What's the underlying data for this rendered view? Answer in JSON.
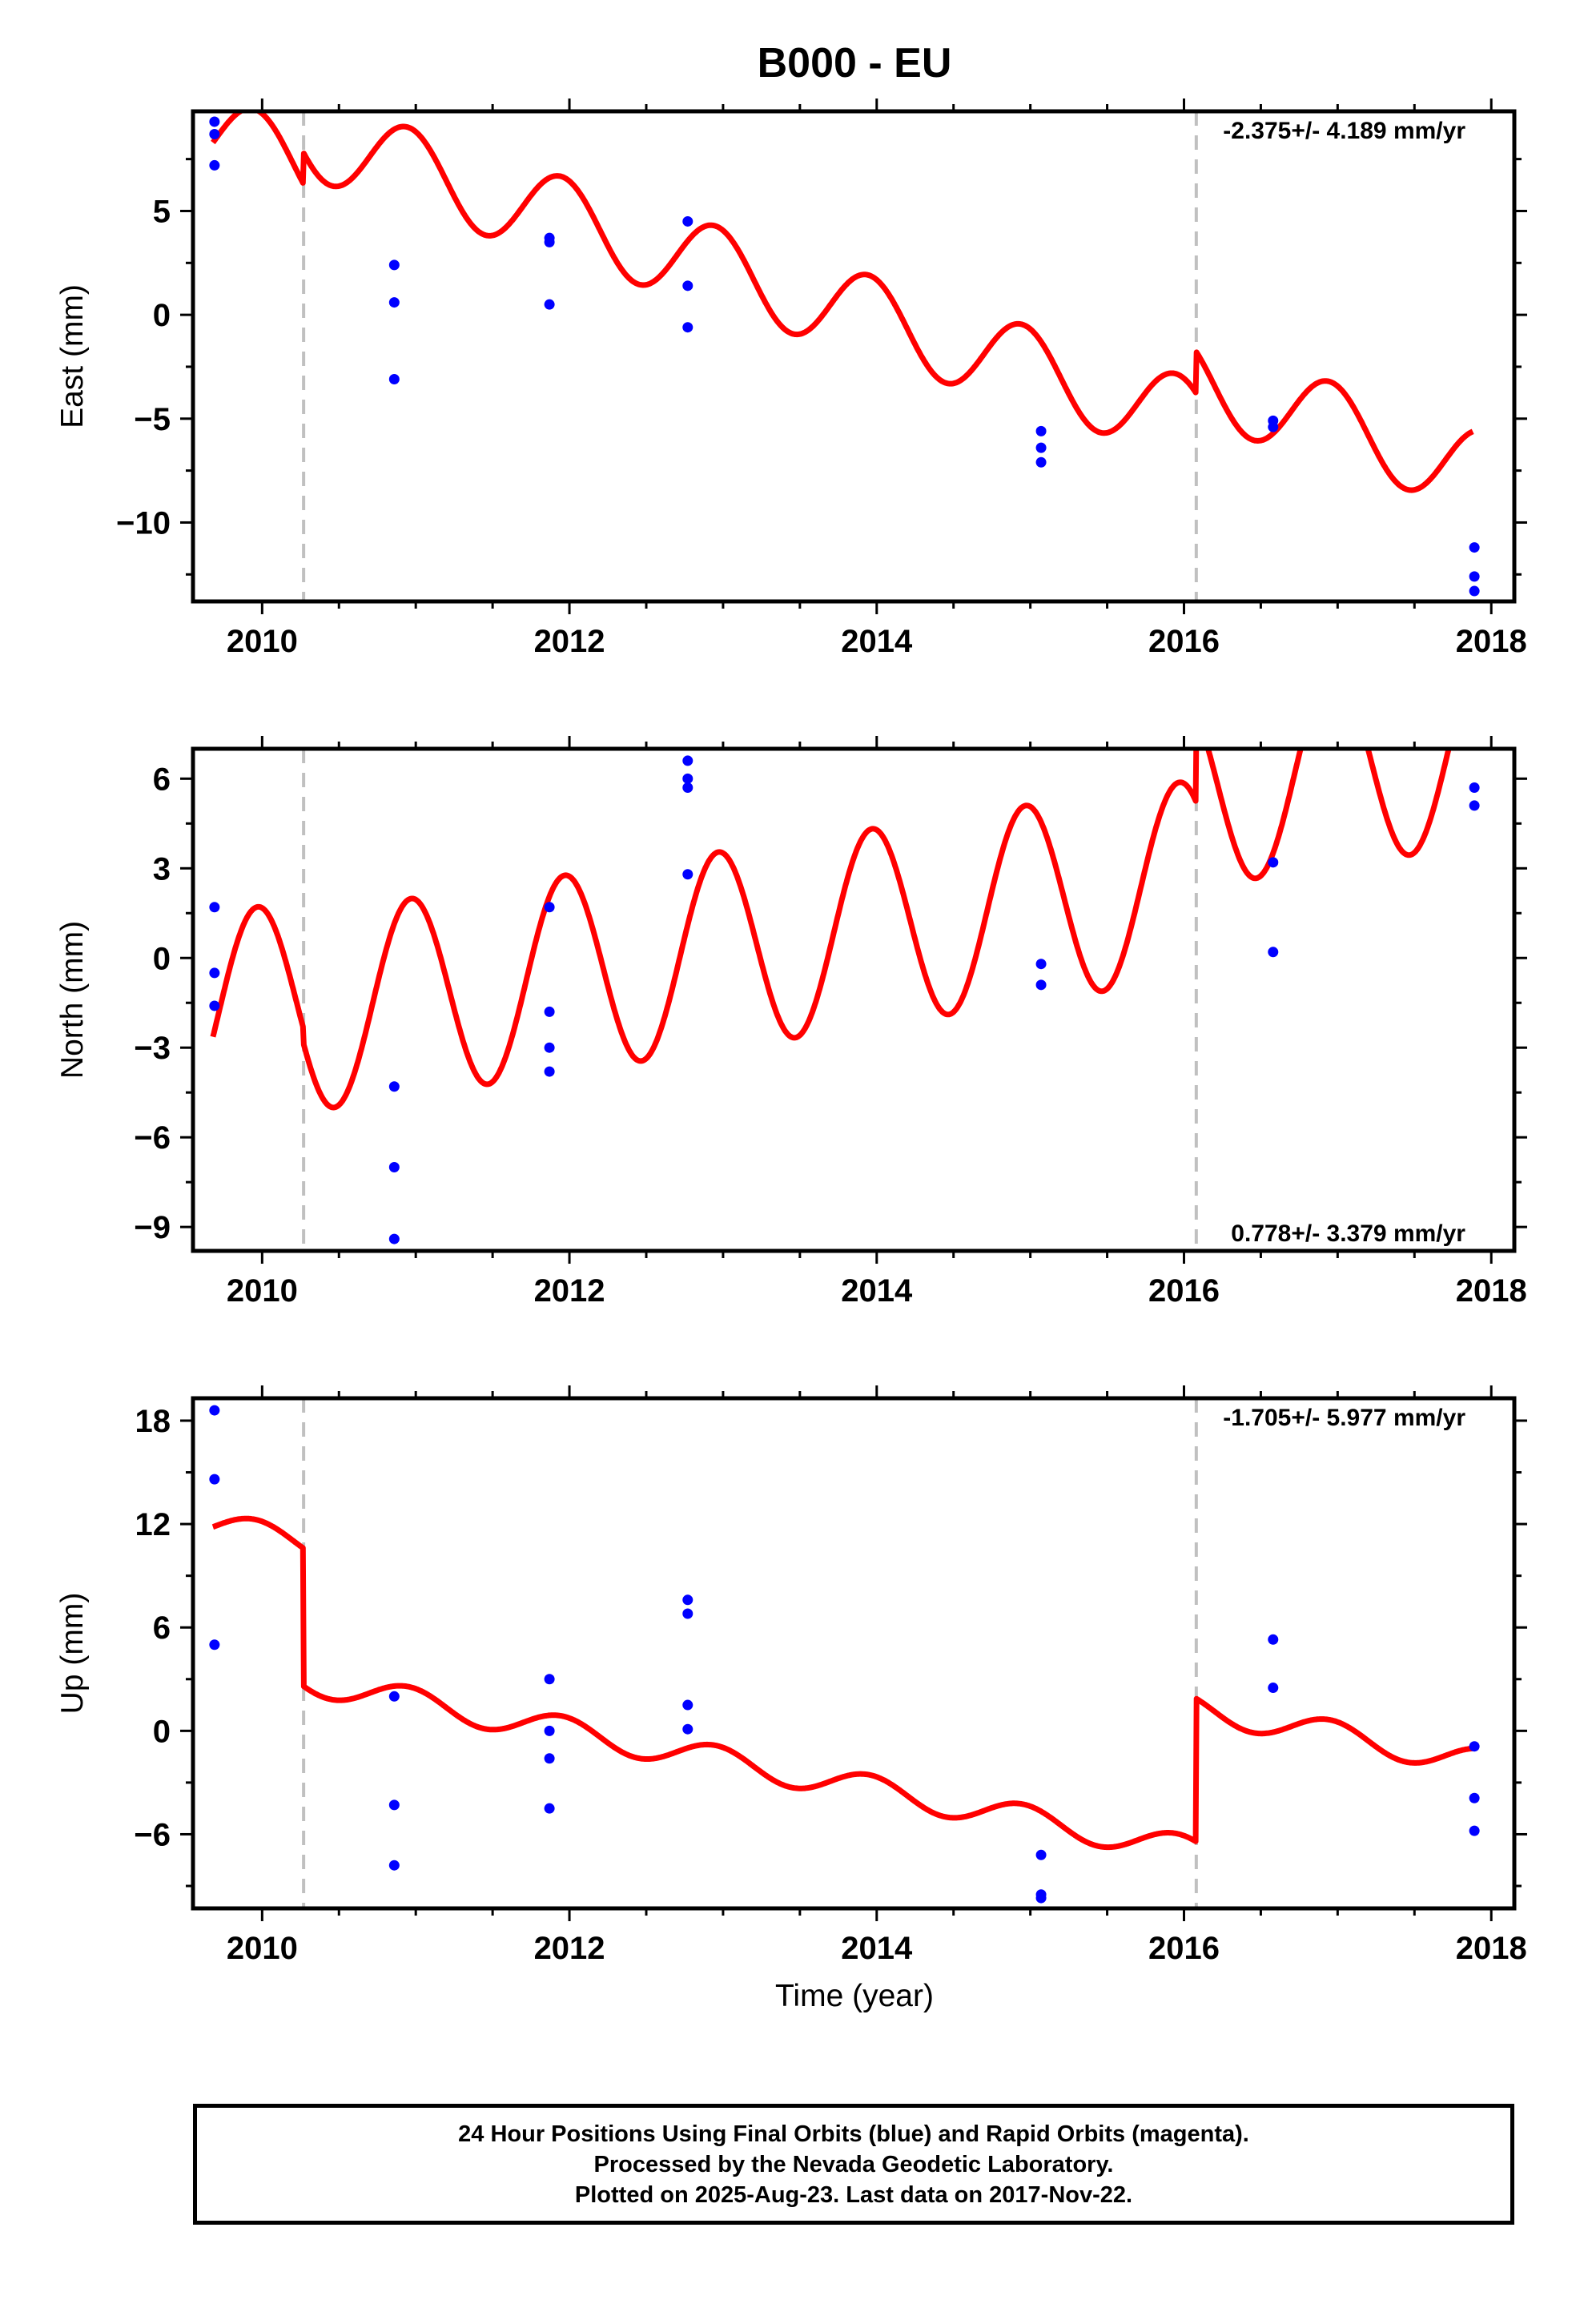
{
  "title": "B000 - EU",
  "chart_data": [
    {
      "type": "line",
      "panel": "east",
      "ylabel": "East (mm)",
      "xlim": [
        2009.55,
        2018.15
      ],
      "ylim": [
        -13.8,
        9.8
      ],
      "xticks": [
        2010,
        2012,
        2014,
        2016,
        2018
      ],
      "yticks": [
        -10,
        -5,
        0,
        5
      ],
      "ytick_labels": [
        "−10",
        "−5",
        "0",
        "5"
      ],
      "rate_text": "-2.375+/- 4.189 mm/yr",
      "rate_position": "top-right",
      "steps": [
        2010.27,
        2016.08
      ],
      "model": {
        "base": 8.5,
        "trend": -2.375,
        "t0": 2009.7,
        "amp": 2.0,
        "period": 1.0,
        "phase": 2009.95,
        "offsets": [
          {
            "at": 2010.27,
            "value": 1.5
          },
          {
            "at": 2016.08,
            "value": 2.0
          }
        ],
        "x_start": 2009.68,
        "x_end": 2017.88
      },
      "points": [
        {
          "x": 2009.69,
          "y": 9.3
        },
        {
          "x": 2009.69,
          "y": 8.7
        },
        {
          "x": 2009.69,
          "y": 7.2
        },
        {
          "x": 2010.86,
          "y": 2.4
        },
        {
          "x": 2010.86,
          "y": 0.6
        },
        {
          "x": 2010.86,
          "y": -3.1
        },
        {
          "x": 2011.87,
          "y": 3.7
        },
        {
          "x": 2011.87,
          "y": 3.5
        },
        {
          "x": 2011.87,
          "y": 0.5
        },
        {
          "x": 2012.77,
          "y": 4.5
        },
        {
          "x": 2012.77,
          "y": 1.4
        },
        {
          "x": 2012.77,
          "y": -0.6
        },
        {
          "x": 2015.07,
          "y": -5.6
        },
        {
          "x": 2015.07,
          "y": -6.4
        },
        {
          "x": 2015.07,
          "y": -7.1
        },
        {
          "x": 2016.58,
          "y": -5.1
        },
        {
          "x": 2016.58,
          "y": -5.4
        },
        {
          "x": 2017.89,
          "y": -11.2
        },
        {
          "x": 2017.89,
          "y": -12.6
        },
        {
          "x": 2017.89,
          "y": -13.3
        }
      ]
    },
    {
      "type": "line",
      "panel": "north",
      "ylabel": "North (mm)",
      "xlim": [
        2009.55,
        2018.15
      ],
      "ylim": [
        -9.8,
        7.0
      ],
      "xticks": [
        2010,
        2012,
        2014,
        2016,
        2018
      ],
      "yticks": [
        -9,
        -6,
        -3,
        0,
        3,
        6
      ],
      "ytick_labels": [
        "−9",
        "−6",
        "−3",
        "0",
        "3",
        "6"
      ],
      "rate_text": "0.778+/- 3.379 mm/yr",
      "rate_position": "bottom-right",
      "steps": [
        2010.27,
        2016.08
      ],
      "model": {
        "base": -1.8,
        "trend": 0.778,
        "t0": 2009.7,
        "amp": 3.3,
        "period": 1.0,
        "phase": 2009.97,
        "offsets": [
          {
            "at": 2010.27,
            "value": -0.5
          },
          {
            "at": 2016.08,
            "value": 3.0
          }
        ],
        "x_start": 2009.68,
        "x_end": 2017.88
      },
      "points": [
        {
          "x": 2009.69,
          "y": 1.7
        },
        {
          "x": 2009.69,
          "y": -0.5
        },
        {
          "x": 2009.69,
          "y": -1.6
        },
        {
          "x": 2010.86,
          "y": -4.3
        },
        {
          "x": 2010.86,
          "y": -7.0
        },
        {
          "x": 2010.86,
          "y": -9.4
        },
        {
          "x": 2011.87,
          "y": 1.7
        },
        {
          "x": 2011.87,
          "y": -1.8
        },
        {
          "x": 2011.87,
          "y": -3.0
        },
        {
          "x": 2011.87,
          "y": -3.8
        },
        {
          "x": 2012.77,
          "y": 6.6
        },
        {
          "x": 2012.77,
          "y": 6.0
        },
        {
          "x": 2012.77,
          "y": 5.7
        },
        {
          "x": 2012.77,
          "y": 2.8
        },
        {
          "x": 2015.07,
          "y": -0.2
        },
        {
          "x": 2015.07,
          "y": -0.9
        },
        {
          "x": 2016.58,
          "y": 3.2
        },
        {
          "x": 2016.58,
          "y": 0.2
        },
        {
          "x": 2017.89,
          "y": 5.7
        },
        {
          "x": 2017.89,
          "y": 5.1
        }
      ]
    },
    {
      "type": "line",
      "panel": "up",
      "ylabel": "Up (mm)",
      "xlim": [
        2009.55,
        2018.15
      ],
      "ylim": [
        -10.3,
        19.3
      ],
      "xticks": [
        2010,
        2012,
        2014,
        2016,
        2018
      ],
      "yticks": [
        -6,
        0,
        6,
        12,
        18
      ],
      "ytick_labels": [
        "−6",
        "0",
        "6",
        "12",
        "18"
      ],
      "rate_text": "-1.705+/- 5.977 mm/yr",
      "rate_position": "top-right",
      "steps": [
        2010.27,
        2016.08
      ],
      "model": {
        "base": 11.9,
        "trend": -1.705,
        "t0": 2009.7,
        "amp": 0.8,
        "period": 1.0,
        "phase": 2009.95,
        "offsets": [
          {
            "at": 2010.27,
            "value": -8.0
          },
          {
            "at": 2016.08,
            "value": 8.3
          }
        ],
        "x_start": 2009.68,
        "x_end": 2017.88
      },
      "points": [
        {
          "x": 2009.69,
          "y": 18.6
        },
        {
          "x": 2009.69,
          "y": 14.6
        },
        {
          "x": 2009.69,
          "y": 5.0
        },
        {
          "x": 2010.86,
          "y": 2.0
        },
        {
          "x": 2010.86,
          "y": -4.3
        },
        {
          "x": 2010.86,
          "y": -7.8
        },
        {
          "x": 2011.87,
          "y": 3.0
        },
        {
          "x": 2011.87,
          "y": 0.0
        },
        {
          "x": 2011.87,
          "y": -1.6
        },
        {
          "x": 2011.87,
          "y": -4.5
        },
        {
          "x": 2012.77,
          "y": 7.6
        },
        {
          "x": 2012.77,
          "y": 6.8
        },
        {
          "x": 2012.77,
          "y": 1.5
        },
        {
          "x": 2012.77,
          "y": 0.1
        },
        {
          "x": 2015.07,
          "y": -7.2
        },
        {
          "x": 2015.07,
          "y": -9.5
        },
        {
          "x": 2015.07,
          "y": -9.7
        },
        {
          "x": 2016.58,
          "y": 5.3
        },
        {
          "x": 2016.58,
          "y": 2.5
        },
        {
          "x": 2017.89,
          "y": -0.9
        },
        {
          "x": 2017.89,
          "y": -3.9
        },
        {
          "x": 2017.89,
          "y": -5.8
        }
      ]
    }
  ],
  "xlabel": "Time (year)",
  "xtick_labels": [
    "2010",
    "2012",
    "2014",
    "2016",
    "2018"
  ],
  "colors": {
    "points": "#0000ff",
    "model": "#ff0000",
    "steps": "#c0c0c0",
    "frame": "#000000"
  },
  "footer": {
    "line1": "24 Hour Positions Using Final Orbits (blue) and Rapid Orbits (magenta).",
    "line2": "Processed by the Nevada Geodetic Laboratory.",
    "line3": "Plotted on 2025-Aug-23. Last data on 2017-Nov-22."
  }
}
